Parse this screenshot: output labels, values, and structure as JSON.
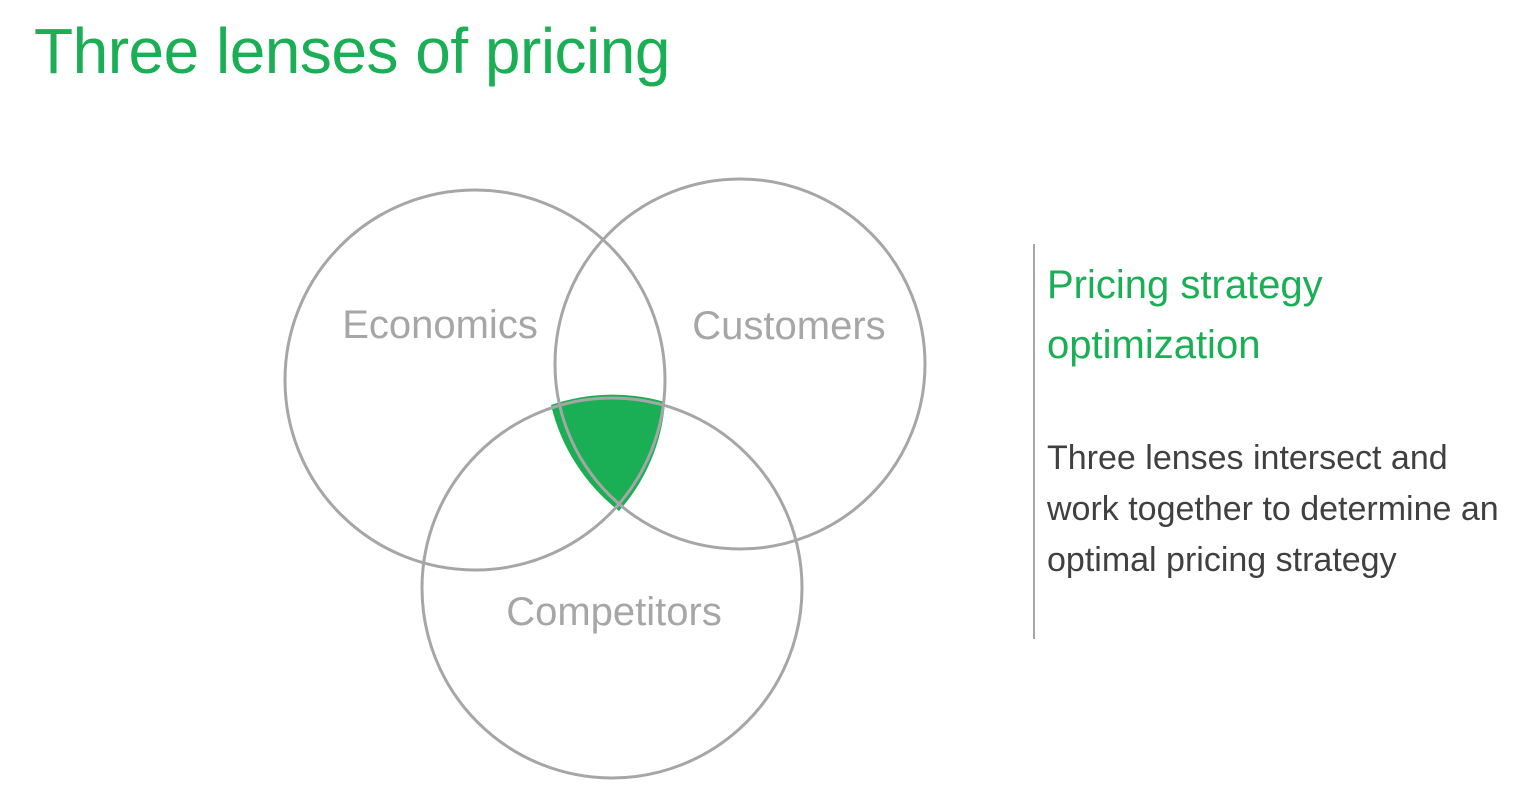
{
  "title": "Three lenses of pricing",
  "colors": {
    "accent": "#1aaf54",
    "circle_stroke": "#a6a6a6",
    "lens_label": "#a6a6a6",
    "body_text": "#404040"
  },
  "diagram": {
    "lenses": [
      {
        "id": "economics",
        "label": "Economics"
      },
      {
        "id": "customers",
        "label": "Customers"
      },
      {
        "id": "competitors",
        "label": "Competitors"
      }
    ],
    "intersection": "highlighted"
  },
  "summary": {
    "heading": "Pricing strategy optimization",
    "body": "Three lenses intersect and work together to determine an optimal pricing strategy"
  }
}
